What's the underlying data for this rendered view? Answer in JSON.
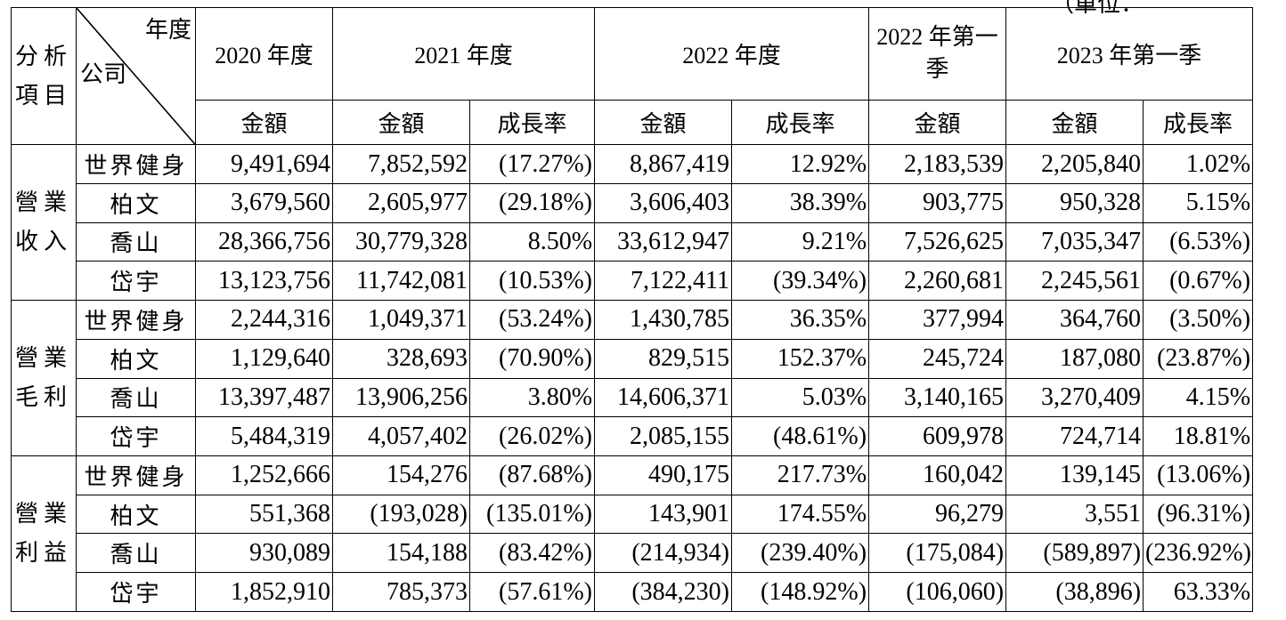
{
  "corner_clip": "（單位：",
  "header": {
    "analysis_label": "分析項目",
    "corner_top": "年度",
    "corner_bottom": "公司",
    "years": [
      "2020 年度",
      "2021 年度",
      "2022 年度",
      "2022 年第一季",
      "2023 年第一季"
    ],
    "amount": "金額",
    "growth": "成長率"
  },
  "groups": [
    {
      "category": "營業收入",
      "rows": [
        {
          "company": "世界健身",
          "values": [
            "9,491,694",
            "7,852,592",
            "(17.27%)",
            "8,867,419",
            "12.92%",
            "2,183,539",
            "2,205,840",
            "1.02%"
          ]
        },
        {
          "company": "柏文",
          "values": [
            "3,679,560",
            "2,605,977",
            "(29.18%)",
            "3,606,403",
            "38.39%",
            "903,775",
            "950,328",
            "5.15%"
          ]
        },
        {
          "company": "喬山",
          "values": [
            "28,366,756",
            "30,779,328",
            "8.50%",
            "33,612,947",
            "9.21%",
            "7,526,625",
            "7,035,347",
            "(6.53%)"
          ]
        },
        {
          "company": "岱宇",
          "values": [
            "13,123,756",
            "11,742,081",
            "(10.53%)",
            "7,122,411",
            "(39.34%)",
            "2,260,681",
            "2,245,561",
            "(0.67%)"
          ]
        }
      ]
    },
    {
      "category": "營業毛利",
      "rows": [
        {
          "company": "世界健身",
          "values": [
            "2,244,316",
            "1,049,371",
            "(53.24%)",
            "1,430,785",
            "36.35%",
            "377,994",
            "364,760",
            "(3.50%)"
          ]
        },
        {
          "company": "柏文",
          "values": [
            "1,129,640",
            "328,693",
            "(70.90%)",
            "829,515",
            "152.37%",
            "245,724",
            "187,080",
            "(23.87%)"
          ]
        },
        {
          "company": "喬山",
          "values": [
            "13,397,487",
            "13,906,256",
            "3.80%",
            "14,606,371",
            "5.03%",
            "3,140,165",
            "3,270,409",
            "4.15%"
          ]
        },
        {
          "company": "岱宇",
          "values": [
            "5,484,319",
            "4,057,402",
            "(26.02%)",
            "2,085,155",
            "(48.61%)",
            "609,978",
            "724,714",
            "18.81%"
          ]
        }
      ]
    },
    {
      "category": "營業利益",
      "rows": [
        {
          "company": "世界健身",
          "values": [
            "1,252,666",
            "154,276",
            "(87.68%)",
            "490,175",
            "217.73%",
            "160,042",
            "139,145",
            "(13.06%)"
          ]
        },
        {
          "company": "柏文",
          "values": [
            "551,368",
            "(193,028)",
            "(135.01%)",
            "143,901",
            "174.55%",
            "96,279",
            "3,551",
            "(96.31%)"
          ]
        },
        {
          "company": "喬山",
          "values": [
            "930,089",
            "154,188",
            "(83.42%)",
            "(214,934)",
            "(239.40%)",
            "(175,084)",
            "(589,897)",
            "(236.92%)"
          ]
        },
        {
          "company": "岱宇",
          "values": [
            "1,852,910",
            "785,373",
            "(57.61%)",
            "(384,230)",
            "(148.92%)",
            "(106,060)",
            "(38,896)",
            "63.33%"
          ]
        }
      ]
    }
  ]
}
